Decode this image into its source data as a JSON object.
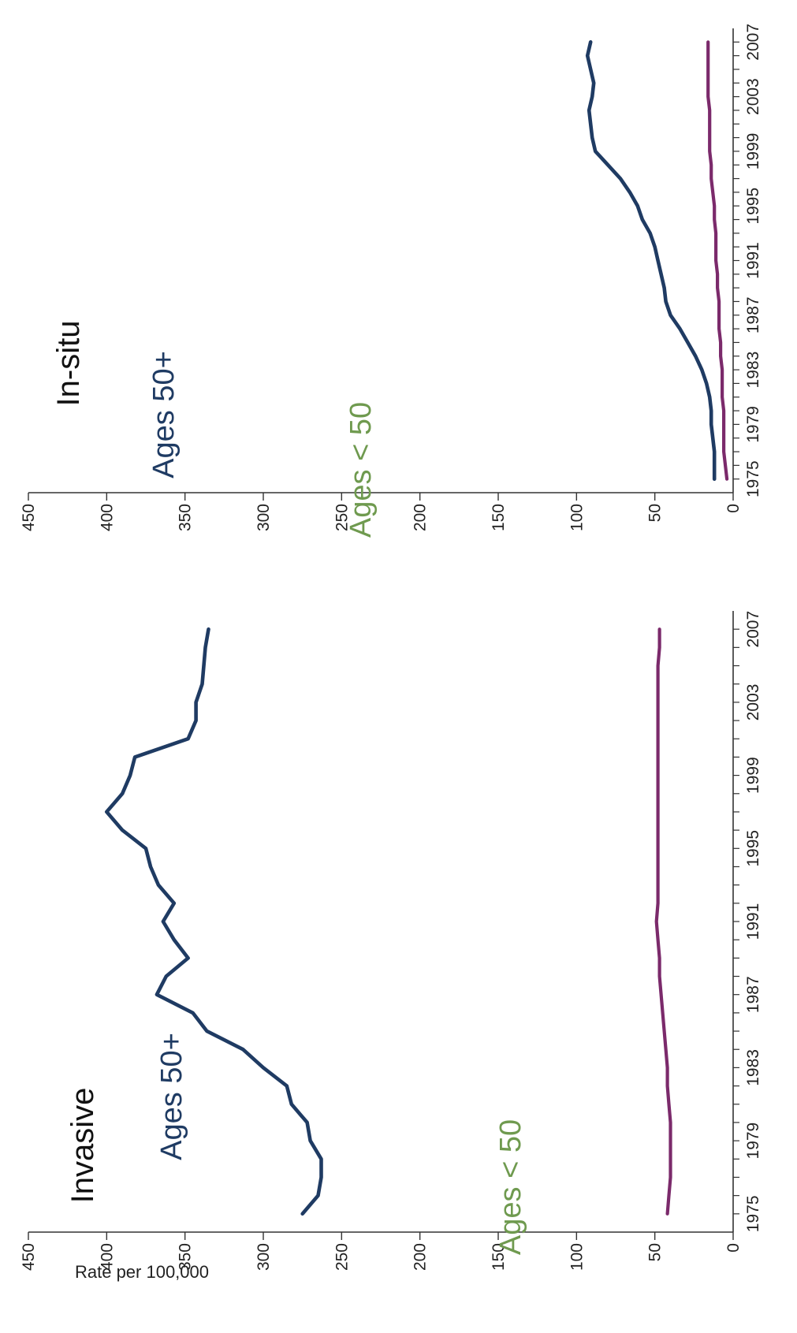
{
  "ylabel": "Rate per 100,000",
  "chart_data": [
    {
      "type": "line",
      "title": "Invasive",
      "xlim": [
        1974,
        2008
      ],
      "ylim": [
        0,
        450
      ],
      "x_ticks": [
        "1975",
        "1979",
        "1983",
        "1987",
        "1991",
        "1995",
        "1999",
        "2003",
        "2007"
      ],
      "y_ticks": [
        "0",
        "50",
        "100",
        "150",
        "200",
        "250",
        "300",
        "350",
        "400",
        "450"
      ],
      "x": [
        1975,
        1976,
        1977,
        1978,
        1979,
        1980,
        1981,
        1982,
        1983,
        1984,
        1985,
        1986,
        1987,
        1988,
        1989,
        1990,
        1991,
        1992,
        1993,
        1994,
        1995,
        1996,
        1997,
        1998,
        1999,
        2000,
        2001,
        2002,
        2003,
        2004,
        2005,
        2006,
        2007
      ],
      "series": [
        {
          "name": "Ages 50+",
          "color": "#1f3b63",
          "values": [
            275,
            265,
            263,
            263,
            270,
            272,
            282,
            285,
            300,
            313,
            336,
            345,
            368,
            362,
            348,
            357,
            364,
            357,
            367,
            372,
            375,
            390,
            400,
            390,
            385,
            382,
            348,
            343,
            343,
            339,
            338,
            337,
            335
          ]
        },
        {
          "name": "Ages < 50",
          "color": "#7b2a6b",
          "values": [
            42,
            41,
            40,
            40,
            40,
            40,
            41,
            42,
            42,
            43,
            44,
            45,
            46,
            47,
            47,
            48,
            49,
            48,
            48,
            48,
            48,
            48,
            48,
            48,
            48,
            48,
            48,
            48,
            48,
            48,
            48,
            47,
            47
          ]
        }
      ]
    },
    {
      "type": "line",
      "title": "In-situ",
      "xlim": [
        1974,
        2008
      ],
      "ylim": [
        0,
        450
      ],
      "x_ticks": [
        "1975",
        "1979",
        "1983",
        "1987",
        "1991",
        "1995",
        "1999",
        "2003",
        "2007"
      ],
      "y_ticks": [
        "0",
        "50",
        "100",
        "150",
        "200",
        "250",
        "300",
        "350",
        "400",
        "450"
      ],
      "x": [
        1975,
        1976,
        1977,
        1978,
        1979,
        1980,
        1981,
        1982,
        1983,
        1984,
        1985,
        1986,
        1987,
        1988,
        1989,
        1990,
        1991,
        1992,
        1993,
        1994,
        1995,
        1996,
        1997,
        1998,
        1999,
        2000,
        2001,
        2002,
        2003,
        2004,
        2005,
        2006,
        2007
      ],
      "series": [
        {
          "name": "Ages 50+",
          "color": "#1f3b63",
          "values": [
            12,
            12,
            12,
            13,
            14,
            14,
            15,
            17,
            20,
            24,
            29,
            34,
            40,
            43,
            44,
            46,
            48,
            50,
            53,
            58,
            61,
            66,
            72,
            80,
            88,
            90,
            91,
            92,
            90,
            89,
            91,
            93,
            91
          ]
        },
        {
          "name": "Ages < 50",
          "color": "#7b2a6b",
          "values": [
            4,
            5,
            6,
            6,
            6,
            6,
            7,
            7,
            7,
            8,
            8,
            9,
            9,
            9,
            10,
            10,
            11,
            11,
            11,
            12,
            12,
            13,
            14,
            14,
            15,
            15,
            15,
            15,
            16,
            16,
            16,
            16,
            16
          ]
        }
      ]
    }
  ],
  "colors": {
    "label_older": "#1f3b63",
    "label_younger": "#6f9a4f"
  }
}
